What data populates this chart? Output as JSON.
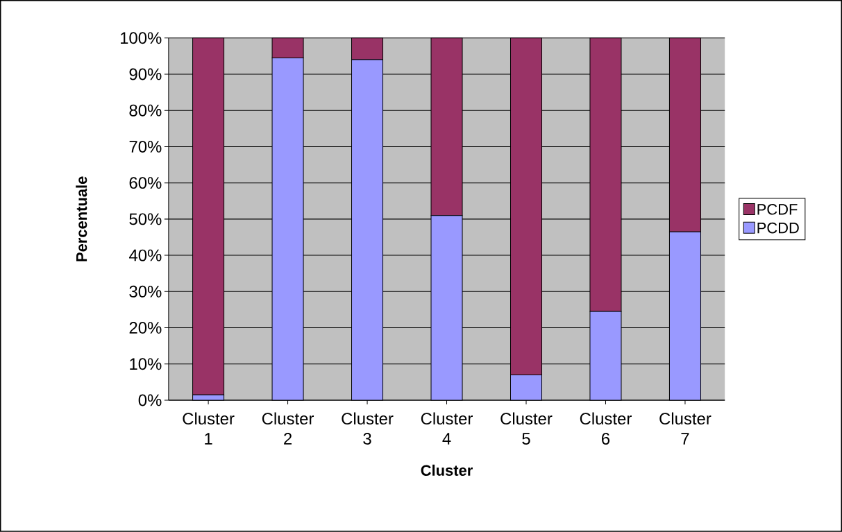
{
  "chart_data": {
    "type": "bar",
    "stacked": true,
    "xlabel": "Cluster",
    "ylabel": "Percentuale",
    "categories": [
      "Cluster 1",
      "Cluster 2",
      "Cluster 3",
      "Cluster 4",
      "Cluster 5",
      "Cluster 6",
      "Cluster 7"
    ],
    "series": [
      {
        "name": "PCDD",
        "color": "#9999ff",
        "values": [
          1.5,
          94.5,
          94,
          51,
          7,
          24.5,
          46.5
        ]
      },
      {
        "name": "PCDF",
        "color": "#993366",
        "values": [
          98.5,
          5.5,
          6,
          49,
          93,
          75.5,
          53.5
        ]
      }
    ],
    "ylim": [
      0,
      100
    ],
    "yticks": [
      {
        "value": 0,
        "label": "0%"
      },
      {
        "value": 10,
        "label": "10%"
      },
      {
        "value": 20,
        "label": "20%"
      },
      {
        "value": 30,
        "label": "30%"
      },
      {
        "value": 40,
        "label": "40%"
      },
      {
        "value": 50,
        "label": "50%"
      },
      {
        "value": 60,
        "label": "60%"
      },
      {
        "value": 70,
        "label": "70%"
      },
      {
        "value": 80,
        "label": "80%"
      },
      {
        "value": 90,
        "label": "90%"
      },
      {
        "value": 100,
        "label": "100%"
      }
    ],
    "grid": "y",
    "legend": "right"
  }
}
